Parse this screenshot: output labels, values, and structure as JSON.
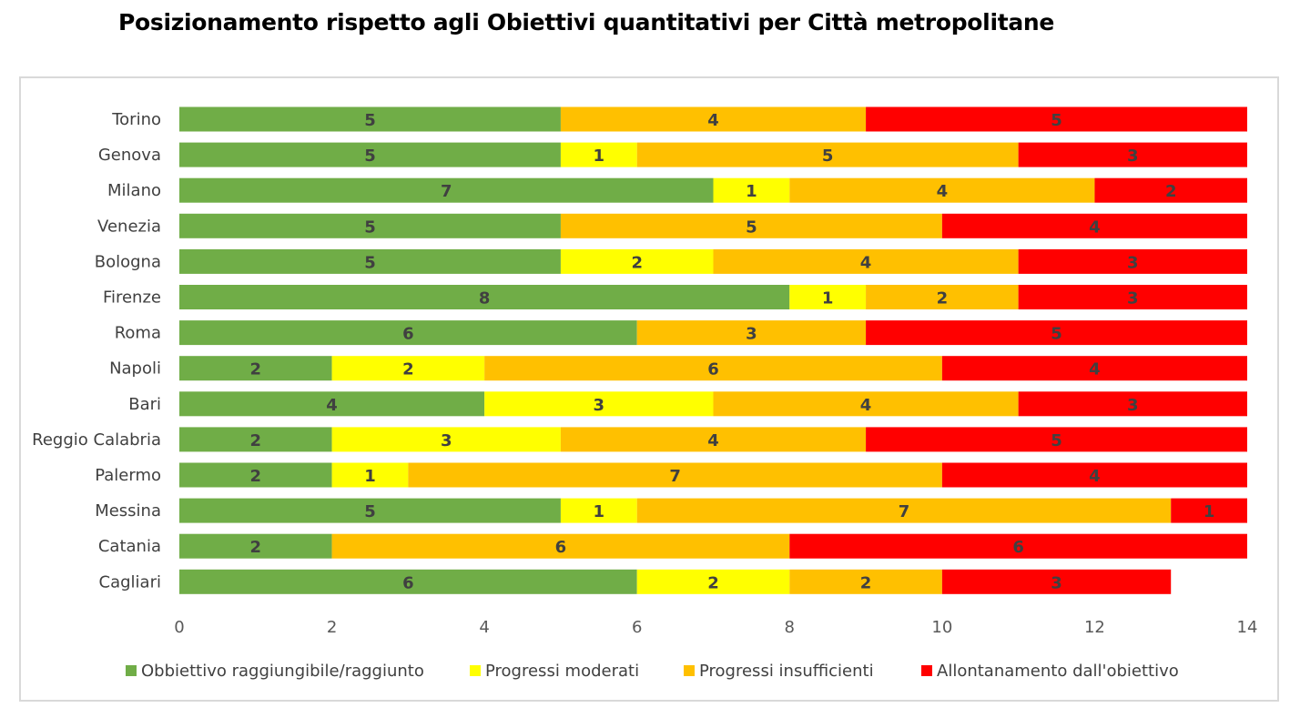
{
  "title": "Posizionamento rispetto agli Obiettivi quantitativi per Città metropolitane",
  "chart_data": {
    "type": "bar",
    "orientation": "horizontal",
    "stacked": true,
    "title": "Posizionamento rispetto agli Obiettivi quantitativi per Città metropolitane",
    "xlim": [
      0,
      14
    ],
    "xticks": [
      0,
      2,
      4,
      6,
      8,
      10,
      12,
      14
    ],
    "grid": false,
    "legend_position": "bottom",
    "categories": [
      "Torino",
      "Genova",
      "Milano",
      "Venezia",
      "Bologna",
      "Firenze",
      "Roma",
      "Napoli",
      "Bari",
      "Reggio Calabria",
      "Palermo",
      "Messina",
      "Catania",
      "Cagliari"
    ],
    "series": [
      {
        "name": "Obbiettivo raggiungibile/raggiunto",
        "color": "#70ad47",
        "values": [
          5,
          5,
          7,
          5,
          5,
          8,
          6,
          2,
          4,
          2,
          2,
          5,
          2,
          6
        ]
      },
      {
        "name": "Progressi moderati",
        "color": "#ffff00",
        "values": [
          0,
          1,
          1,
          0,
          2,
          1,
          0,
          2,
          3,
          3,
          1,
          1,
          0,
          2
        ]
      },
      {
        "name": "Progressi insufficienti",
        "color": "#ffc000",
        "values": [
          4,
          5,
          4,
          5,
          4,
          2,
          3,
          6,
          4,
          4,
          7,
          7,
          6,
          2
        ]
      },
      {
        "name": "Allontanamento dall'obiettivo",
        "color": "#ff0000",
        "values": [
          5,
          3,
          2,
          4,
          3,
          3,
          5,
          4,
          3,
          5,
          4,
          1,
          6,
          3
        ]
      }
    ]
  }
}
